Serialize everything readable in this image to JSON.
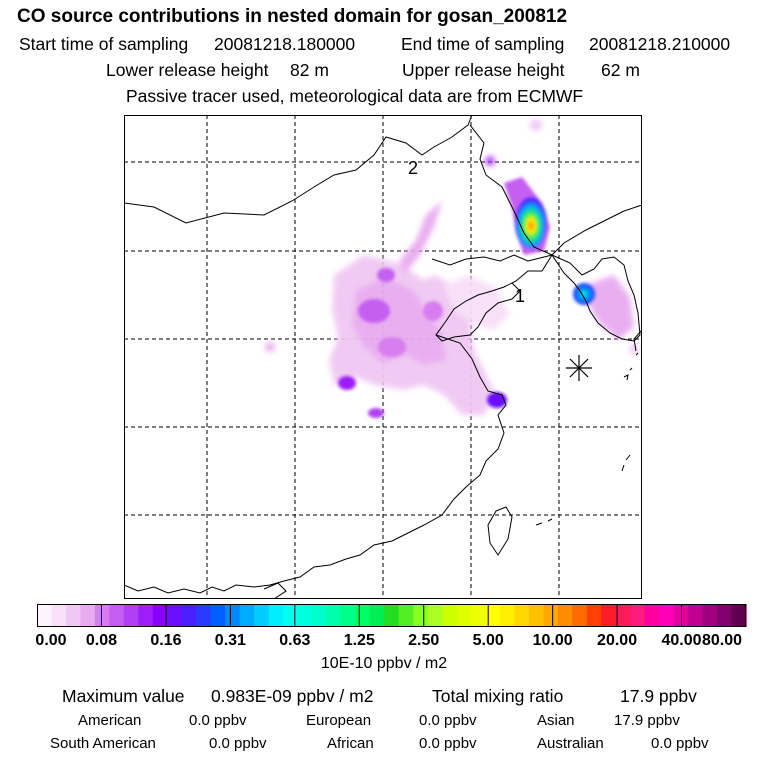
{
  "title": "CO  source contributions in nested domain for gosan_200812",
  "sampling": {
    "start_label": "Start time of sampling",
    "start_value": "20081218.180000",
    "end_label": "End time of sampling",
    "end_value": "20081218.210000"
  },
  "release": {
    "lower_label": "Lower release height",
    "lower_value": "82 m",
    "upper_label": "Upper release height",
    "upper_value": "62 m"
  },
  "tracer_note": "Passive tracer used, meteorological data are from ECMWF",
  "map": {
    "labels": [
      "2",
      "1"
    ],
    "station_marker": "asterisk-station-marker"
  },
  "colorbar": {
    "tick_labels": [
      "0.00",
      "0.08",
      "0.16",
      "0.31",
      "0.63",
      "1.25",
      "2.50",
      "5.00",
      "10.00",
      "20.00",
      "40.00",
      "80.00"
    ],
    "units": "10E-10 ppbv / m2",
    "colors": [
      "#fdf4fd",
      "#f8e0f8",
      "#f0c8f3",
      "#e8aaf0",
      "#d77df0",
      "#c45ef2",
      "#b03ff5",
      "#9c1ff8",
      "#8a00ff",
      "#6a10ff",
      "#4a20ff",
      "#2a3aff",
      "#0060ff",
      "#0088ff",
      "#00aaff",
      "#00ccff",
      "#00eeff",
      "#00ffee",
      "#00ffdd",
      "#00ffcc",
      "#00ffaa",
      "#00ff88",
      "#00ff66",
      "#00ee55",
      "#22dd22",
      "#55ee22",
      "#88ff22",
      "#aaff22",
      "#ccff00",
      "#ddff00",
      "#eeff00",
      "#ffff00",
      "#ffee00",
      "#ffd800",
      "#ffc000",
      "#ffa800",
      "#ff8c00",
      "#ff6a00",
      "#ff4000",
      "#ff1a2a",
      "#ff1a5a",
      "#ff1a80",
      "#ff00a0",
      "#ff00b8",
      "#e000a0",
      "#c00090",
      "#a00080",
      "#800070",
      "#600050"
    ]
  },
  "summary": {
    "max_label": "Maximum value",
    "max_value": "0.983E-09 ppbv / m2",
    "total_label": "Total mixing ratio",
    "total_value": "17.9 ppbv"
  },
  "regions": [
    {
      "name": "American",
      "value": "0.0 ppbv"
    },
    {
      "name": "European",
      "value": "0.0 ppbv"
    },
    {
      "name": "Asian",
      "value": "17.9 ppbv"
    },
    {
      "name": "South American",
      "value": "0.0 ppbv"
    },
    {
      "name": "African",
      "value": "0.0 ppbv"
    },
    {
      "name": "Australian",
      "value": "0.0 ppbv"
    }
  ]
}
